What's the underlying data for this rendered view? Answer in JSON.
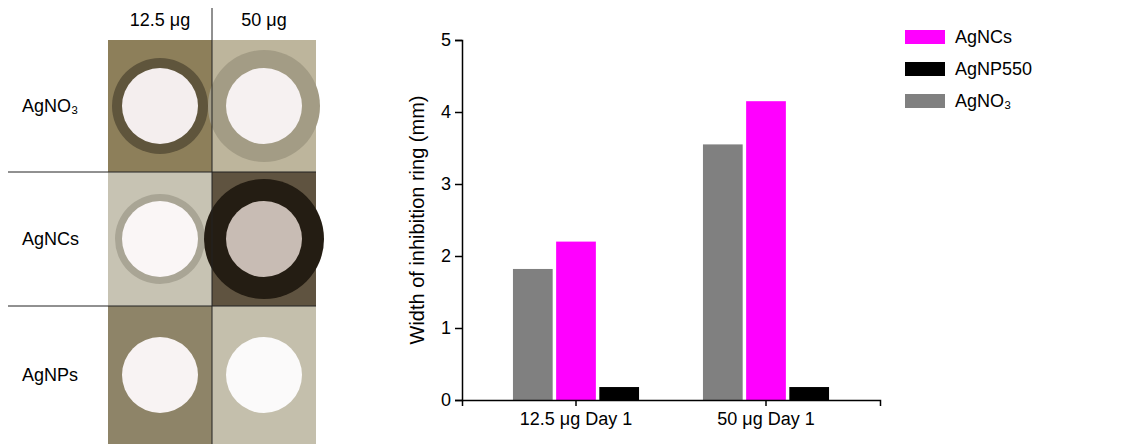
{
  "image_grid": {
    "columns": [
      "12.5 μg",
      "50 μg"
    ],
    "rows": [
      "AgNO₃",
      "AgNCs",
      "AgNPs"
    ]
  },
  "chart_data": {
    "type": "bar",
    "y_label": "Width of inhibition ring (mm)",
    "categories": [
      "12.5 μg Day 1",
      "50 μg Day 1"
    ],
    "series": [
      {
        "name": "AgNO₃",
        "color": "#808080",
        "values": [
          1.82,
          3.55
        ]
      },
      {
        "name": "AgNCs",
        "color": "#ff00ff",
        "values": [
          2.2,
          4.15
        ]
      },
      {
        "name": "AgNP550",
        "color": "#000000",
        "values": [
          0.18,
          0.18
        ]
      }
    ],
    "ylim": [
      0,
      5
    ],
    "yticks": [
      0,
      1,
      2,
      3,
      4,
      5
    ],
    "grid": false,
    "legend": "right"
  }
}
